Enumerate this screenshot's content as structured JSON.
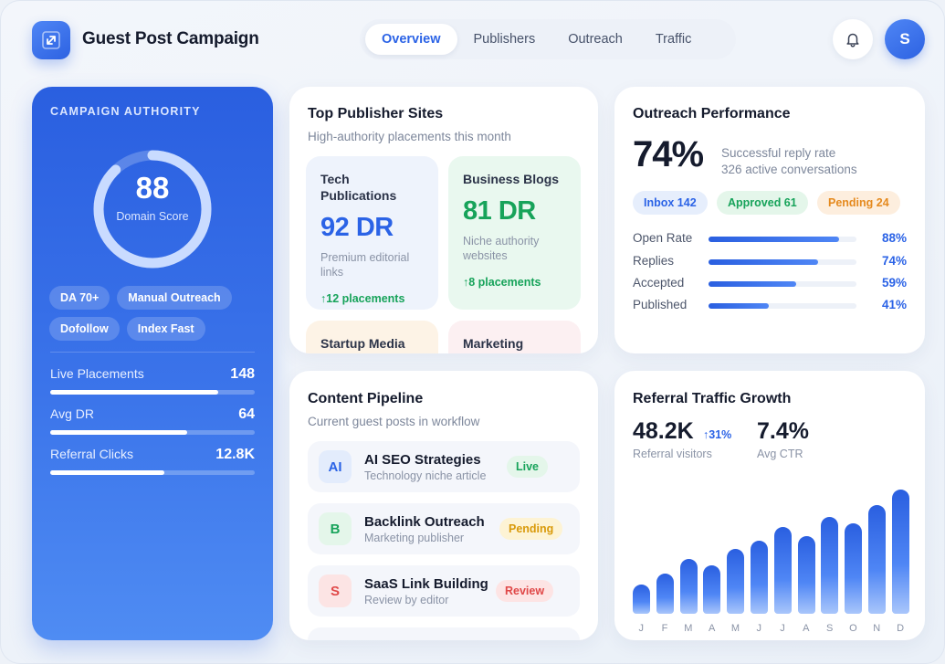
{
  "header": {
    "title": "Guest Post Campaign",
    "tabs": [
      {
        "label": "Overview",
        "active": true
      },
      {
        "label": "Publishers",
        "active": false
      },
      {
        "label": "Outreach",
        "active": false
      },
      {
        "label": "Traffic",
        "active": false
      }
    ],
    "avatar_initial": "S"
  },
  "authority": {
    "title": "CAMPAIGN AUTHORITY",
    "score": "88",
    "score_label": "Domain Score",
    "score_fraction": 0.88,
    "chips": [
      "DA 70+",
      "Manual Outreach",
      "Dofollow",
      "Index Fast"
    ],
    "metrics": [
      {
        "label": "Live Placements",
        "value": "148",
        "fill": 0.82
      },
      {
        "label": "Avg DR",
        "value": "64",
        "fill": 0.67
      },
      {
        "label": "Referral Clicks",
        "value": "12.8K",
        "fill": 0.56
      }
    ]
  },
  "publishers": {
    "title": "Top Publisher Sites",
    "subtitle": "High-authority placements this month",
    "tiles": [
      {
        "name": "Tech Publications",
        "dr": "92 DR",
        "desc": "Premium editorial links",
        "placements": "↑12 placements"
      },
      {
        "name": "Business Blogs",
        "dr": "81 DR",
        "desc": "Niche authority websites",
        "placements": "↑8 placements"
      },
      {
        "name": "Startup Media"
      },
      {
        "name": "Marketing"
      }
    ]
  },
  "outreach": {
    "title": "Outreach Performance",
    "rate": "74%",
    "rate_label": "Successful reply rate",
    "conversations": "326 active conversations",
    "pills": [
      {
        "label": "Inbox 142"
      },
      {
        "label": "Approved 61"
      },
      {
        "label": "Pending 24"
      }
    ],
    "rows": [
      {
        "label": "Open Rate",
        "value": "88%",
        "fill": 0.88
      },
      {
        "label": "Replies",
        "value": "74%",
        "fill": 0.74
      },
      {
        "label": "Accepted",
        "value": "59%",
        "fill": 0.59
      },
      {
        "label": "Published",
        "value": "41%",
        "fill": 0.41
      }
    ]
  },
  "pipeline": {
    "title": "Content Pipeline",
    "subtitle": "Current guest posts in workflow",
    "items": [
      {
        "icon": "AI",
        "title": "AI SEO Strategies",
        "sub": "Technology niche article",
        "badge": "Live"
      },
      {
        "icon": "B",
        "title": "Backlink Outreach",
        "sub": "Marketing publisher",
        "badge": "Pending"
      },
      {
        "icon": "S",
        "title": "SaaS Link Building",
        "sub": "Review by editor",
        "badge": "Review"
      }
    ]
  },
  "traffic": {
    "title": "Referral Traffic Growth",
    "visitors": "48.2K",
    "visitors_delta": "↑31%",
    "visitors_label": "Referral visitors",
    "ctr": "7.4%",
    "ctr_label": "Avg CTR"
  },
  "chart_data": {
    "type": "bar",
    "categories": [
      "J",
      "F",
      "M",
      "A",
      "M",
      "J",
      "J",
      "A",
      "S",
      "O",
      "N",
      "D"
    ],
    "values": [
      35,
      48,
      66,
      58,
      78,
      88,
      104,
      93,
      116,
      109,
      130,
      149
    ],
    "title": "Referral Traffic Growth",
    "xlabel": "",
    "ylabel": "",
    "ylim": [
      0,
      160
    ],
    "grid": false
  }
}
